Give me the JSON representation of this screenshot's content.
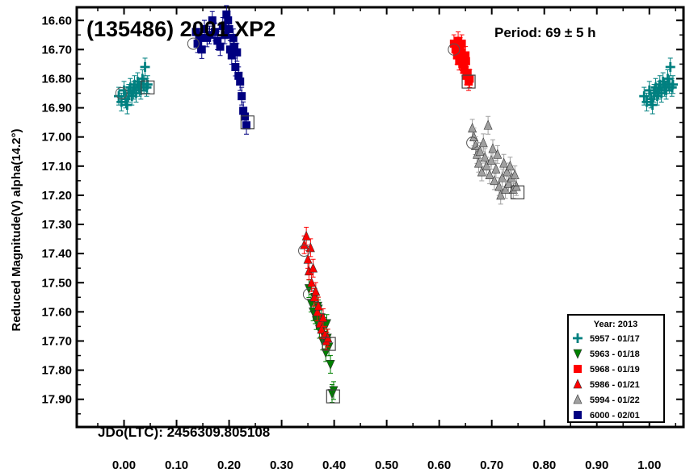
{
  "chart_data": {
    "type": "scatter",
    "title": "(135486) 2001 XP2",
    "period_label": "Period: 69 ± 5 h",
    "epoch_label": "JDo(LTC): 2456309.805108",
    "ylabel": "Reduced Magnitude(V) alpha(14.2°)",
    "xlabel": "",
    "xlim": [
      -0.09,
      1.065
    ],
    "ylim": [
      17.995,
      16.555
    ],
    "y_inverted": true,
    "x_ticks": [
      "0.00",
      "0.10",
      "0.20",
      "0.30",
      "0.40",
      "0.50",
      "0.60",
      "0.70",
      "0.80",
      "0.90",
      "1.00"
    ],
    "y_ticks": [
      "16.60",
      "16.70",
      "16.80",
      "16.90",
      "17.00",
      "17.10",
      "17.20",
      "17.30",
      "17.40",
      "17.50",
      "17.60",
      "17.70",
      "17.80",
      "17.90"
    ],
    "legend_title": "Year: 2013",
    "legend_position": "bottom-right",
    "series": [
      {
        "name": "5957 - 01/17",
        "marker": "plus",
        "color": "#008080",
        "start": [
          -0.005,
          16.85
        ],
        "end": [
          0.045,
          16.83
        ],
        "points": [
          [
            -0.01,
            16.86
          ],
          [
            -0.005,
            16.88
          ],
          [
            0.0,
            16.84
          ],
          [
            0.003,
            16.87
          ],
          [
            0.006,
            16.89
          ],
          [
            0.009,
            16.85
          ],
          [
            0.012,
            16.83
          ],
          [
            0.015,
            16.86
          ],
          [
            0.018,
            16.84
          ],
          [
            0.02,
            16.82
          ],
          [
            0.023,
            16.85
          ],
          [
            0.026,
            16.81
          ],
          [
            0.029,
            16.83
          ],
          [
            0.032,
            16.84
          ],
          [
            0.035,
            16.8
          ],
          [
            0.038,
            16.82
          ],
          [
            0.04,
            16.76
          ],
          [
            0.043,
            16.83
          ],
          [
            0.045,
            16.82
          ],
          [
            0.99,
            16.86
          ],
          [
            0.995,
            16.88
          ],
          [
            1.0,
            16.84
          ],
          [
            1.003,
            16.87
          ],
          [
            1.006,
            16.89
          ],
          [
            1.009,
            16.85
          ],
          [
            1.012,
            16.83
          ],
          [
            1.015,
            16.86
          ],
          [
            1.018,
            16.84
          ],
          [
            1.02,
            16.82
          ],
          [
            1.023,
            16.85
          ],
          [
            1.026,
            16.81
          ],
          [
            1.029,
            16.83
          ],
          [
            1.032,
            16.84
          ],
          [
            1.035,
            16.8
          ],
          [
            1.038,
            16.82
          ],
          [
            1.04,
            16.76
          ],
          [
            1.043,
            16.83
          ],
          [
            1.045,
            16.82
          ]
        ]
      },
      {
        "name": "5963 - 01/18",
        "marker": "triangle-down",
        "color": "#008000",
        "start": [
          0.352,
          17.54
        ],
        "end": [
          0.398,
          17.89
        ],
        "points": [
          [
            0.352,
            17.52
          ],
          [
            0.356,
            17.57
          ],
          [
            0.36,
            17.6
          ],
          [
            0.363,
            17.55
          ],
          [
            0.366,
            17.63
          ],
          [
            0.369,
            17.58
          ],
          [
            0.372,
            17.66
          ],
          [
            0.375,
            17.62
          ],
          [
            0.378,
            17.7
          ],
          [
            0.381,
            17.65
          ],
          [
            0.384,
            17.74
          ],
          [
            0.387,
            17.69
          ],
          [
            0.39,
            17.72
          ],
          [
            0.393,
            17.78
          ],
          [
            0.396,
            17.88
          ],
          [
            0.399,
            17.87
          ],
          [
            0.37,
            17.59
          ],
          [
            0.38,
            17.68
          ],
          [
            0.364,
            17.61
          ],
          [
            0.386,
            17.64
          ]
        ]
      },
      {
        "name": "5968 - 01/19",
        "marker": "square",
        "color": "#ff0000",
        "start": [
          0.628,
          16.7
        ],
        "end": [
          0.656,
          16.81
        ],
        "points": [
          [
            0.628,
            16.68
          ],
          [
            0.631,
            16.7
          ],
          [
            0.634,
            16.72
          ],
          [
            0.636,
            16.67
          ],
          [
            0.638,
            16.74
          ],
          [
            0.64,
            16.69
          ],
          [
            0.642,
            16.71
          ],
          [
            0.644,
            16.75
          ],
          [
            0.646,
            16.73
          ],
          [
            0.648,
            16.77
          ],
          [
            0.65,
            16.72
          ],
          [
            0.652,
            16.79
          ],
          [
            0.654,
            16.78
          ],
          [
            0.656,
            16.81
          ],
          [
            0.658,
            16.8
          ],
          [
            0.643,
            16.68
          ],
          [
            0.647,
            16.76
          ],
          [
            0.651,
            16.74
          ]
        ]
      },
      {
        "name": "5986 - 01/21",
        "marker": "triangle-up",
        "color": "#ff0000",
        "start": [
          0.343,
          17.39
        ],
        "end": [
          0.39,
          17.71
        ],
        "points": [
          [
            0.343,
            17.37
          ],
          [
            0.347,
            17.34
          ],
          [
            0.35,
            17.42
          ],
          [
            0.352,
            17.46
          ],
          [
            0.355,
            17.38
          ],
          [
            0.357,
            17.5
          ],
          [
            0.36,
            17.45
          ],
          [
            0.362,
            17.55
          ],
          [
            0.365,
            17.53
          ],
          [
            0.368,
            17.6
          ],
          [
            0.37,
            17.58
          ],
          [
            0.373,
            17.64
          ],
          [
            0.376,
            17.66
          ],
          [
            0.379,
            17.62
          ],
          [
            0.382,
            17.68
          ],
          [
            0.385,
            17.7
          ],
          [
            0.388,
            17.69
          ]
        ]
      },
      {
        "name": "5994 - 01/22",
        "marker": "triangle-up",
        "color": "#a0a0a0",
        "start": [
          0.663,
          17.02
        ],
        "end": [
          0.749,
          17.19
        ],
        "points": [
          [
            0.663,
            16.97
          ],
          [
            0.666,
            17.0
          ],
          [
            0.669,
            17.03
          ],
          [
            0.672,
            17.06
          ],
          [
            0.675,
            17.09
          ],
          [
            0.678,
            17.05
          ],
          [
            0.681,
            17.12
          ],
          [
            0.684,
            17.02
          ],
          [
            0.687,
            17.07
          ],
          [
            0.69,
            17.1
          ],
          [
            0.693,
            16.96
          ],
          [
            0.696,
            17.13
          ],
          [
            0.699,
            17.08
          ],
          [
            0.702,
            17.04
          ],
          [
            0.705,
            17.15
          ],
          [
            0.708,
            17.11
          ],
          [
            0.711,
            17.06
          ],
          [
            0.714,
            17.17
          ],
          [
            0.717,
            17.2
          ],
          [
            0.72,
            17.14
          ],
          [
            0.723,
            17.09
          ],
          [
            0.726,
            17.18
          ],
          [
            0.729,
            17.12
          ],
          [
            0.732,
            17.16
          ],
          [
            0.735,
            17.1
          ],
          [
            0.738,
            17.14
          ],
          [
            0.741,
            17.18
          ],
          [
            0.744,
            17.13
          ],
          [
            0.747,
            17.17
          ]
        ]
      },
      {
        "name": "6000 - 02/01",
        "marker": "square",
        "color": "#000080",
        "start": [
          0.132,
          16.68
        ],
        "end": [
          0.235,
          16.95
        ],
        "points": [
          [
            0.137,
            16.64
          ],
          [
            0.14,
            16.68
          ],
          [
            0.143,
            16.66
          ],
          [
            0.148,
            16.7
          ],
          [
            0.153,
            16.63
          ],
          [
            0.158,
            16.66
          ],
          [
            0.163,
            16.65
          ],
          [
            0.168,
            16.6
          ],
          [
            0.173,
            16.64
          ],
          [
            0.178,
            16.67
          ],
          [
            0.183,
            16.69
          ],
          [
            0.188,
            16.62
          ],
          [
            0.192,
            16.65
          ],
          [
            0.195,
            16.58
          ],
          [
            0.198,
            16.6
          ],
          [
            0.2,
            16.63
          ],
          [
            0.202,
            16.7
          ],
          [
            0.205,
            16.72
          ],
          [
            0.208,
            16.66
          ],
          [
            0.21,
            16.69
          ],
          [
            0.212,
            16.76
          ],
          [
            0.215,
            16.71
          ],
          [
            0.218,
            16.79
          ],
          [
            0.221,
            16.81
          ],
          [
            0.224,
            16.86
          ],
          [
            0.227,
            16.91
          ],
          [
            0.23,
            16.93
          ],
          [
            0.233,
            16.96
          ]
        ]
      }
    ]
  }
}
